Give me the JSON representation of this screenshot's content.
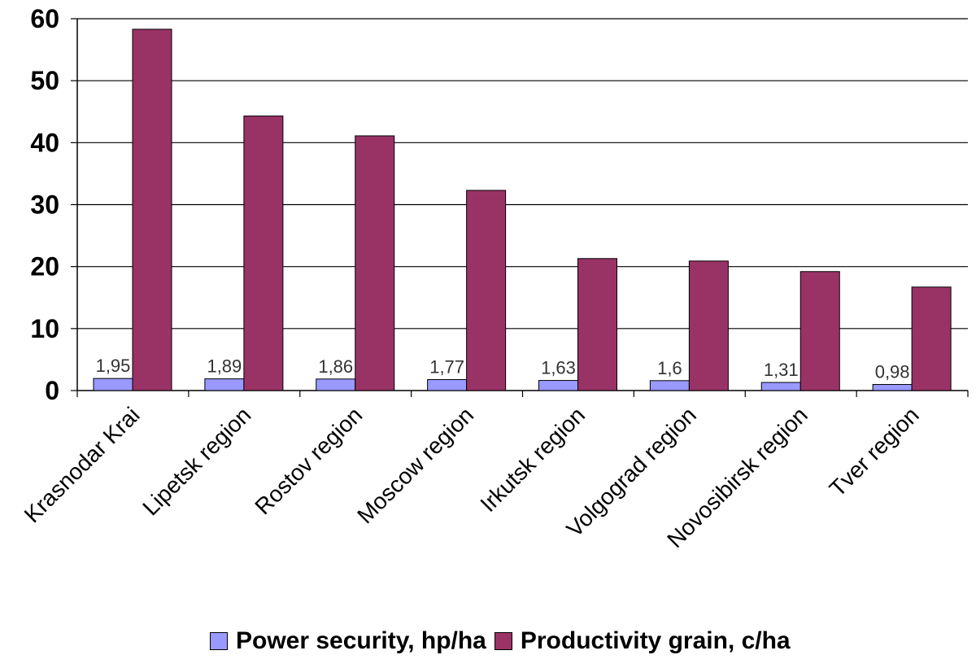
{
  "chart_data": {
    "type": "bar",
    "categories": [
      "Krasnodar Krai",
      "Lipetsk region",
      "Rostov region",
      "Moscow region",
      "Irkutsk region",
      "Volgograd region",
      "Novosibirsk region",
      "Tver region"
    ],
    "series": [
      {
        "name": "Power security, hp/ha",
        "color": "#9999ff",
        "values": [
          1.95,
          1.89,
          1.86,
          1.77,
          1.63,
          1.6,
          1.31,
          0.98
        ],
        "data_labels": [
          "1,95",
          "1,89",
          "1,86",
          "1,77",
          "1,63",
          "1,6",
          "1,31",
          "0,98"
        ]
      },
      {
        "name": "Productivity grain, c/ha",
        "color": "#993366",
        "values": [
          58.3,
          44.3,
          41.1,
          32.3,
          21.3,
          20.9,
          19.2,
          16.7
        ]
      }
    ],
    "yticks": [
      "0",
      "10",
      "20",
      "30",
      "40",
      "50",
      "60"
    ],
    "ylim": [
      0,
      60
    ],
    "grid": true,
    "legend_position": "bottom"
  }
}
